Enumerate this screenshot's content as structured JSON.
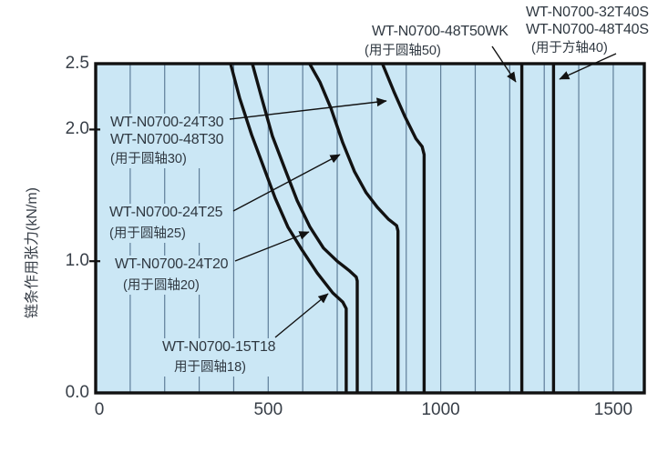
{
  "page": {
    "background": "#ffffff"
  },
  "colors": {
    "plot_bg": "#cbe7f5",
    "grid": "#5f7e99",
    "curve": "#121212",
    "border": "#111111",
    "text": "#383f48",
    "label_text": "#2f3841"
  },
  "chart_data": {
    "type": "line",
    "title": "",
    "xlabel": "",
    "ylabel": "链条作用张力(kN/m)",
    "xlim": [
      0,
      1590
    ],
    "ylim": [
      0,
      2.5
    ],
    "grid": "vertical-only",
    "x_grid_step": 100,
    "legend": "none",
    "x_ticks": [
      {
        "value": 0,
        "label": "0"
      },
      {
        "value": 500,
        "label": "500"
      },
      {
        "value": 1000,
        "label": "1000"
      },
      {
        "value": 1500,
        "label": "1500"
      }
    ],
    "y_ticks": [
      {
        "value": 2.5,
        "label": "2.5",
        "tick": false
      },
      {
        "value": 2.0,
        "label": "2.0",
        "tick": true
      },
      {
        "value": 1.0,
        "label": "1.0",
        "tick": true
      },
      {
        "value": 0.0,
        "label": "0.0",
        "tick": false
      }
    ],
    "series": [
      {
        "name": "WT-N0700-15T18",
        "note": "用于圆轴18",
        "points": [
          [
            391,
            2.5
          ],
          [
            417,
            2.24
          ],
          [
            452,
            1.96
          ],
          [
            486,
            1.72
          ],
          [
            520,
            1.48
          ],
          [
            557,
            1.26
          ],
          [
            597,
            1.09
          ],
          [
            642,
            0.91
          ],
          [
            687,
            0.76
          ],
          [
            716,
            0.69
          ],
          [
            726,
            0.64
          ],
          [
            726,
            0
          ]
        ]
      },
      {
        "name": "WT-N0700-24T20",
        "note": "用于圆轴20",
        "points": [
          [
            454,
            2.5
          ],
          [
            481,
            2.24
          ],
          [
            512,
            1.95
          ],
          [
            547,
            1.71
          ],
          [
            584,
            1.46
          ],
          [
            621,
            1.26
          ],
          [
            660,
            1.1
          ],
          [
            700,
            1.0
          ],
          [
            734,
            0.93
          ],
          [
            755,
            0.88
          ],
          [
            758,
            0.85
          ],
          [
            758,
            0
          ]
        ]
      },
      {
        "name": "WT-N0700-24T25",
        "note": "用于圆轴25",
        "points": [
          [
            620,
            2.5
          ],
          [
            650,
            2.36
          ],
          [
            682,
            2.16
          ],
          [
            716,
            1.9
          ],
          [
            750,
            1.68
          ],
          [
            784,
            1.52
          ],
          [
            816,
            1.41
          ],
          [
            848,
            1.32
          ],
          [
            872,
            1.27
          ],
          [
            876,
            1.23
          ],
          [
            876,
            0
          ]
        ]
      },
      {
        "name": "WT-N0700-24T30 / WT-N0700-48T30",
        "note": "用于圆轴30",
        "points": [
          [
            831,
            2.5
          ],
          [
            864,
            2.29
          ],
          [
            896,
            2.1
          ],
          [
            928,
            1.93
          ],
          [
            946,
            1.87
          ],
          [
            952,
            1.81
          ],
          [
            952,
            0
          ]
        ]
      },
      {
        "name": "WT-N0700-48T50WK",
        "note": "用于圆轴50",
        "points": [
          [
            1235,
            2.5
          ],
          [
            1235,
            0
          ]
        ]
      },
      {
        "name": "WT-N0700-32T40S / WT-N0700-48T40S",
        "note": "用于方轴40",
        "points": [
          [
            1327,
            2.5
          ],
          [
            1327,
            0
          ]
        ]
      }
    ]
  },
  "annotations": {
    "a24t30": {
      "line1": "WT-N0700-24T30",
      "line2": "WT-N0700-48T30",
      "sub": "(用于圆轴30)"
    },
    "a24t25": {
      "line1": "WT-N0700-24T25",
      "sub": "(用于圆轴25)"
    },
    "a24t20": {
      "line1": "WT-N0700-24T20",
      "sub": "(用于圆轴20)"
    },
    "a15t18": {
      "line1": "WT-N0700-15T18",
      "sub": "用于圆轴18)"
    },
    "a48t50wk": {
      "line1": "WT-N0700-48T50WK",
      "sub": "(用于圆轴50)"
    },
    "a40s": {
      "line1": "WT-N0700-32T40S",
      "line2": "WT-N0700-48T40S",
      "sub": "(用于方轴40)"
    }
  }
}
